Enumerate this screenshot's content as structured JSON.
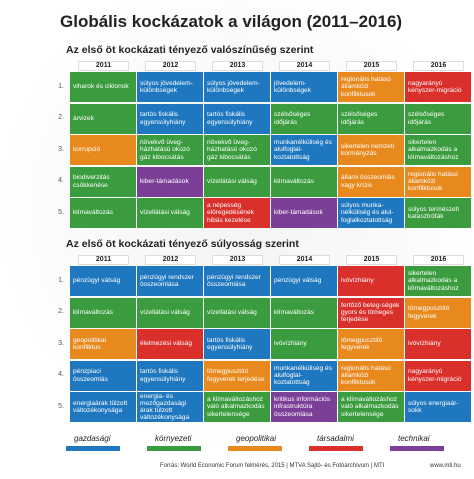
{
  "title": "Globális kockázatok a világon (2011–2016)",
  "years": [
    "2011",
    "2012",
    "2013",
    "2014",
    "2015",
    "2016"
  ],
  "row_numbers": [
    "1.",
    "2.",
    "3.",
    "4.",
    "5."
  ],
  "sections": [
    {
      "subtitle": "Az első öt kockázati tényező valószínűség szerint",
      "rows": [
        [
          {
            "text": "viharok és ciklonok",
            "color": "#3a9c3e"
          },
          {
            "text": "súlyos jövedelem-különbségek",
            "color": "#1f77bf"
          },
          {
            "text": "súlyos jövedelem-különbségek",
            "color": "#1f77bf"
          },
          {
            "text": "jövedelem-különbségek",
            "color": "#1f77bf"
          },
          {
            "text": "regionális hatású államközi konfliktusok",
            "color": "#e8891e"
          },
          {
            "text": "nagyarányú kényszer-migráció",
            "color": "#d9302c"
          }
        ],
        [
          {
            "text": "árvizek",
            "color": "#3a9c3e"
          },
          {
            "text": "tartós fiskális egyensúlyhiány",
            "color": "#1f77bf"
          },
          {
            "text": "tartós fiskális egyensúlyhiány",
            "color": "#1f77bf"
          },
          {
            "text": "szélsőséges időjárás",
            "color": "#3a9c3e"
          },
          {
            "text": "szélsőséges időjárás",
            "color": "#3a9c3e"
          },
          {
            "text": "szélsőséges időjárás",
            "color": "#3a9c3e"
          }
        ],
        [
          {
            "text": "korrupció",
            "color": "#e8891e"
          },
          {
            "text": "növekvő üveg-házhatású okozó gáz kibocsátás",
            "color": "#3a9c3e"
          },
          {
            "text": "növekvő üveg-házhatású okozó gáz kibocsátás",
            "color": "#3a9c3e"
          },
          {
            "text": "munkanélküliség és alulfoglal-koztatottság",
            "color": "#1f77bf"
          },
          {
            "text": "sikertelen nemzeti kormányzás",
            "color": "#e8891e"
          },
          {
            "text": "sikertelen alkalmazkodás a klímaváltozáshoz",
            "color": "#3a9c3e"
          }
        ],
        [
          {
            "text": "biodiverzitás csökkenése",
            "color": "#3a9c3e"
          },
          {
            "text": "kiber-támadások",
            "color": "#7b3f98"
          },
          {
            "text": "vízellátási válság",
            "color": "#3a9c3e"
          },
          {
            "text": "klímaváltozás",
            "color": "#3a9c3e"
          },
          {
            "text": "állami összeomlás vagy krízis",
            "color": "#e8891e"
          },
          {
            "text": "regionális hatású államközi konfliktusok",
            "color": "#e8891e"
          }
        ],
        [
          {
            "text": "klímaváltozás",
            "color": "#3a9c3e"
          },
          {
            "text": "vízellátási válság",
            "color": "#3a9c3e"
          },
          {
            "text": "a népesség elöregedésének hibás kezelése",
            "color": "#d9302c"
          },
          {
            "text": "kiber-támadások",
            "color": "#7b3f98"
          },
          {
            "text": "súlyos munka-nélküliség és alul-foglalkoztatottság",
            "color": "#1f77bf"
          },
          {
            "text": "súlyos természeti katasztrófák",
            "color": "#3a9c3e"
          }
        ]
      ]
    },
    {
      "subtitle": "Az első öt kockázati tényező súlyosság szerint",
      "rows": [
        [
          {
            "text": "pénzügyi válság",
            "color": "#1f77bf"
          },
          {
            "text": "pénzügyi rendszer összeomlása",
            "color": "#1f77bf"
          },
          {
            "text": "pénzügyi rendszer összeomlása",
            "color": "#1f77bf"
          },
          {
            "text": "pénzügyi válság",
            "color": "#1f77bf"
          },
          {
            "text": "ivóvízhiány",
            "color": "#d9302c"
          },
          {
            "text": "sikertelen alkalmazkodás a klímaváltozáshoz",
            "color": "#3a9c3e"
          }
        ],
        [
          {
            "text": "klímaváltozás",
            "color": "#3a9c3e"
          },
          {
            "text": "vízellátási válság",
            "color": "#3a9c3e"
          },
          {
            "text": "vízellátási válság",
            "color": "#3a9c3e"
          },
          {
            "text": "klímaváltozás",
            "color": "#3a9c3e"
          },
          {
            "text": "fertőző beteg-ségek gyors és tömeges terjedése",
            "color": "#d9302c"
          },
          {
            "text": "tömegpusztító fegyverek",
            "color": "#e8891e"
          }
        ],
        [
          {
            "text": "geopolitikai konfliktus",
            "color": "#e8891e"
          },
          {
            "text": "élelmezési válság",
            "color": "#d9302c"
          },
          {
            "text": "tartós fiskális egyensúlyhiány",
            "color": "#1f77bf"
          },
          {
            "text": "ivóvízhiány",
            "color": "#3a9c3e"
          },
          {
            "text": "tömegpusztító fegyverek",
            "color": "#e8891e"
          },
          {
            "text": "ivóvízhiány",
            "color": "#d9302c"
          }
        ],
        [
          {
            "text": "pénzpiaci összeomlás",
            "color": "#1f77bf"
          },
          {
            "text": "tartós fiskális egyensúlyhiány",
            "color": "#1f77bf"
          },
          {
            "text": "tömegpusztító fegyverek terjedése",
            "color": "#e8891e"
          },
          {
            "text": "munkanélküliség és alulfoglal-koztatottság",
            "color": "#1f77bf"
          },
          {
            "text": "regionális hatású államközi konfliktusok",
            "color": "#e8891e"
          },
          {
            "text": "nagyarányú kényszer-migráció",
            "color": "#d9302c"
          }
        ],
        [
          {
            "text": "energiaárak tülzott változékonysága",
            "color": "#1f77bf"
          },
          {
            "text": "energia- és mezőgazdasági árak túlzott változékonysága",
            "color": "#1f77bf"
          },
          {
            "text": "a klímaváltozáshoz való alkalmazkodás sikertelensége",
            "color": "#3a9c3e"
          },
          {
            "text": "kritikus információs infrastruktúra összeomlása",
            "color": "#7b3f98"
          },
          {
            "text": "a klímaváltozáshoz való alkalmazkodás sikertelensége",
            "color": "#3a9c3e"
          },
          {
            "text": "súlyos energiaár-sokk",
            "color": "#1f77bf"
          }
        ]
      ]
    }
  ],
  "legend": [
    {
      "name": "gazdasági",
      "color": "#1f77bf"
    },
    {
      "name": "környezeti",
      "color": "#3a9c3e"
    },
    {
      "name": "geopolitikai",
      "color": "#e8891e"
    },
    {
      "name": "társadalmi",
      "color": "#d9302c"
    },
    {
      "name": "technikai",
      "color": "#7b3f98"
    }
  ],
  "footer": {
    "source": "Forrás: World Economic Forum felmérés, 2015 | MTVA Sajtó- és Fotóarchívum | MTI",
    "site": "www.mti.hu"
  }
}
